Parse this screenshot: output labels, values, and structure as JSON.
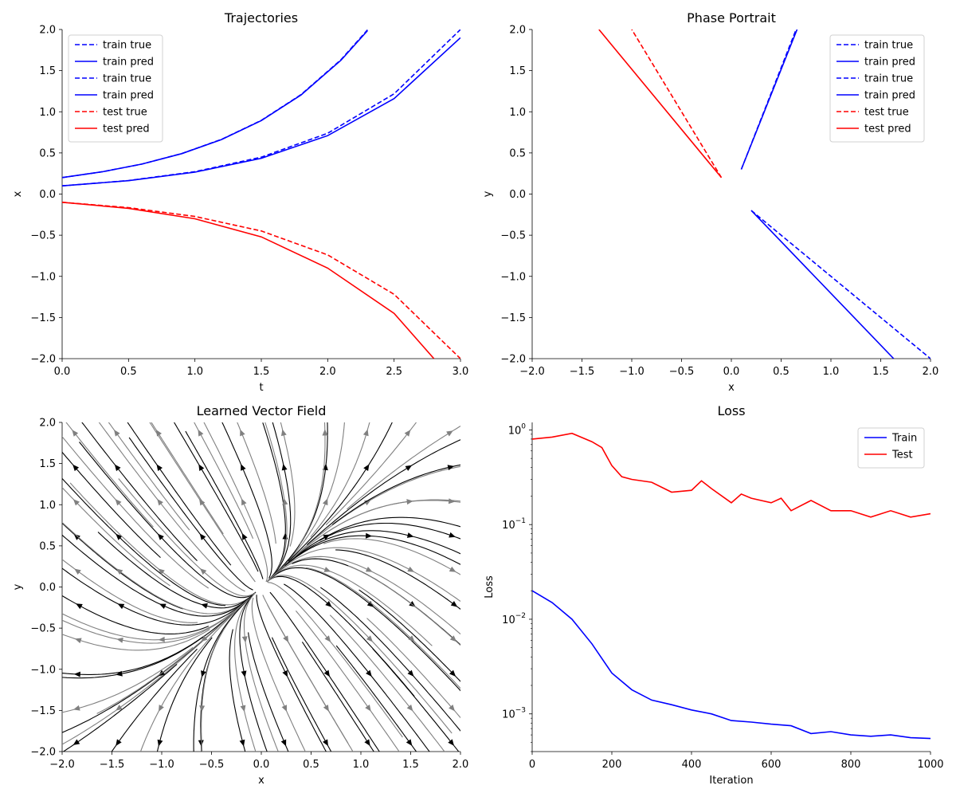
{
  "chart_data": [
    {
      "type": "line",
      "title": "Trajectories",
      "xlabel": "t",
      "ylabel": "x",
      "xlim": [
        0,
        3
      ],
      "ylim": [
        -2,
        2
      ],
      "xticks": [
        0.0,
        0.5,
        1.0,
        1.5,
        2.0,
        2.5,
        3.0
      ],
      "yticks": [
        -2.0,
        -1.5,
        -1.0,
        -0.5,
        0.0,
        0.5,
        1.0,
        1.5,
        2.0
      ],
      "xtick_labels": [
        "0.0",
        "0.5",
        "1.0",
        "1.5",
        "2.0",
        "2.5",
        "3.0"
      ],
      "ytick_labels": [
        "−2.0",
        "−1.5",
        "−1.0",
        "−0.5",
        "0.0",
        "0.5",
        "1.0",
        "1.5",
        "2.0"
      ],
      "grid": false,
      "legend": "top-left",
      "series": [
        {
          "name": "train true",
          "color": "#0000ff",
          "dashed": true,
          "x": [
            0,
            0.3,
            0.6,
            0.9,
            1.2,
            1.5,
            1.8,
            2.1,
            2.3
          ],
          "y": [
            0.2,
            0.27,
            0.364,
            0.492,
            0.664,
            0.896,
            1.21,
            1.633,
            1.995
          ]
        },
        {
          "name": "train pred",
          "color": "#0000ff",
          "dashed": false,
          "x": [
            0,
            0.3,
            0.6,
            0.9,
            1.2,
            1.5,
            1.8,
            2.1,
            2.3
          ],
          "y": [
            0.2,
            0.27,
            0.364,
            0.491,
            0.662,
            0.893,
            1.205,
            1.626,
            1.985
          ]
        },
        {
          "name": "train true",
          "color": "#0000ff",
          "dashed": true,
          "x": [
            0,
            0.5,
            1.0,
            1.5,
            2.0,
            2.5,
            3.0
          ],
          "y": [
            0.1,
            0.165,
            0.272,
            0.448,
            0.739,
            1.218,
            2.0
          ]
        },
        {
          "name": "train pred",
          "color": "#0000ff",
          "dashed": false,
          "x": [
            0,
            0.5,
            1.0,
            1.5,
            2.0,
            2.5,
            3.0
          ],
          "y": [
            0.1,
            0.163,
            0.266,
            0.435,
            0.71,
            1.16,
            1.9
          ]
        },
        {
          "name": "test true",
          "color": "#ff0000",
          "dashed": true,
          "x": [
            0,
            0.5,
            1.0,
            1.5,
            2.0,
            2.5,
            3.0
          ],
          "y": [
            -0.1,
            -0.165,
            -0.272,
            -0.448,
            -0.739,
            -1.218,
            -2.0
          ]
        },
        {
          "name": "test pred",
          "color": "#ff0000",
          "dashed": false,
          "x": [
            0,
            0.5,
            1.0,
            1.5,
            2.0,
            2.5,
            2.8
          ],
          "y": [
            -0.1,
            -0.173,
            -0.3,
            -0.52,
            -0.9,
            -1.45,
            -2.0
          ]
        }
      ]
    },
    {
      "type": "line",
      "title": "Phase Portrait",
      "xlabel": "x",
      "ylabel": "y",
      "xlim": [
        -2,
        2
      ],
      "ylim": [
        -2,
        2
      ],
      "xticks": [
        -2.0,
        -1.5,
        -1.0,
        -0.5,
        0.0,
        0.5,
        1.0,
        1.5,
        2.0
      ],
      "yticks": [
        -2.0,
        -1.5,
        -1.0,
        -0.5,
        0.0,
        0.5,
        1.0,
        1.5,
        2.0
      ],
      "xtick_labels": [
        "−2.0",
        "−1.5",
        "−1.0",
        "−0.5",
        "0.0",
        "0.5",
        "1.0",
        "1.5",
        "2.0"
      ],
      "ytick_labels": [
        "−2.0",
        "−1.5",
        "−1.0",
        "−0.5",
        "0.0",
        "0.5",
        "1.0",
        "1.5",
        "2.0"
      ],
      "grid": false,
      "legend": "top-right",
      "series": [
        {
          "name": "train true",
          "color": "#0000ff",
          "dashed": true,
          "x": [
            0.1,
            0.65
          ],
          "y": [
            0.3,
            2.0
          ]
        },
        {
          "name": "train pred",
          "color": "#0000ff",
          "dashed": false,
          "x": [
            0.1,
            0.66
          ],
          "y": [
            0.3,
            2.0
          ]
        },
        {
          "name": "train true",
          "color": "#0000ff",
          "dashed": true,
          "x": [
            0.2,
            2.0
          ],
          "y": [
            -0.2,
            -2.0
          ]
        },
        {
          "name": "train pred",
          "color": "#0000ff",
          "dashed": false,
          "x": [
            0.2,
            1.63
          ],
          "y": [
            -0.2,
            -2.0
          ]
        },
        {
          "name": "test true",
          "color": "#ff0000",
          "dashed": true,
          "x": [
            -0.1,
            -1.0
          ],
          "y": [
            0.2,
            2.0
          ]
        },
        {
          "name": "test pred",
          "color": "#ff0000",
          "dashed": false,
          "x": [
            -0.1,
            -1.33
          ],
          "y": [
            0.2,
            2.0
          ]
        }
      ]
    },
    {
      "type": "streamplot",
      "title": "Learned Vector Field",
      "xlabel": "x",
      "ylabel": "y",
      "xlim": [
        -2,
        2
      ],
      "ylim": [
        -2,
        2
      ],
      "xticks": [
        -2.0,
        -1.5,
        -1.0,
        -0.5,
        0.0,
        0.5,
        1.0,
        1.5,
        2.0
      ],
      "yticks": [
        -2.0,
        -1.5,
        -1.0,
        -0.5,
        0.0,
        0.5,
        1.0,
        1.5,
        2.0
      ],
      "xtick_labels": [
        "−2.0",
        "−1.5",
        "−1.0",
        "−0.5",
        "0.0",
        "0.5",
        "1.0",
        "1.5",
        "2.0"
      ],
      "ytick_labels": [
        "−2.0",
        "−1.5",
        "−1.0",
        "−0.5",
        "0.0",
        "0.5",
        "1.0",
        "1.5",
        "2.0"
      ],
      "grid": false,
      "field": "outward flow from origin, slope about -2 in the upper-left and lower-right quadrants",
      "colors": [
        "#000000",
        "#808080"
      ]
    },
    {
      "type": "line",
      "title": "Loss",
      "xlabel": "Iteration",
      "ylabel": "Loss",
      "xlim": [
        0,
        1000
      ],
      "ylim": [
        0.0004,
        1.2
      ],
      "yscale": "log",
      "xticks": [
        0,
        200,
        400,
        600,
        800,
        1000
      ],
      "xtick_labels": [
        "0",
        "200",
        "400",
        "600",
        "800",
        "1000"
      ],
      "yticks": [
        0.001,
        0.01,
        0.1,
        1
      ],
      "ytick_labels": [
        {
          "base": "10",
          "exp": "−3"
        },
        {
          "base": "10",
          "exp": "−2"
        },
        {
          "base": "10",
          "exp": "−1"
        },
        {
          "base": "10",
          "exp": "0"
        }
      ],
      "grid": false,
      "legend": "top-right",
      "series": [
        {
          "name": "Train",
          "color": "#0000ff",
          "x": [
            0,
            50,
            100,
            150,
            200,
            250,
            300,
            350,
            400,
            450,
            500,
            550,
            600,
            650,
            700,
            750,
            800,
            850,
            900,
            950,
            1000
          ],
          "y": [
            0.02,
            0.015,
            0.01,
            0.0055,
            0.0027,
            0.0018,
            0.0014,
            0.00125,
            0.0011,
            0.001,
            0.00085,
            0.00082,
            0.00078,
            0.00075,
            0.00062,
            0.00065,
            0.0006,
            0.00058,
            0.0006,
            0.00056,
            0.00055
          ]
        },
        {
          "name": "Test",
          "color": "#ff0000",
          "x": [
            0,
            50,
            100,
            150,
            175,
            200,
            225,
            250,
            300,
            350,
            400,
            425,
            450,
            500,
            525,
            550,
            600,
            625,
            650,
            700,
            750,
            800,
            850,
            900,
            950,
            1000
          ],
          "y": [
            0.8,
            0.84,
            0.92,
            0.75,
            0.65,
            0.42,
            0.32,
            0.3,
            0.28,
            0.22,
            0.23,
            0.29,
            0.24,
            0.17,
            0.21,
            0.19,
            0.17,
            0.19,
            0.14,
            0.18,
            0.14,
            0.14,
            0.12,
            0.14,
            0.12,
            0.13
          ]
        }
      ]
    }
  ]
}
